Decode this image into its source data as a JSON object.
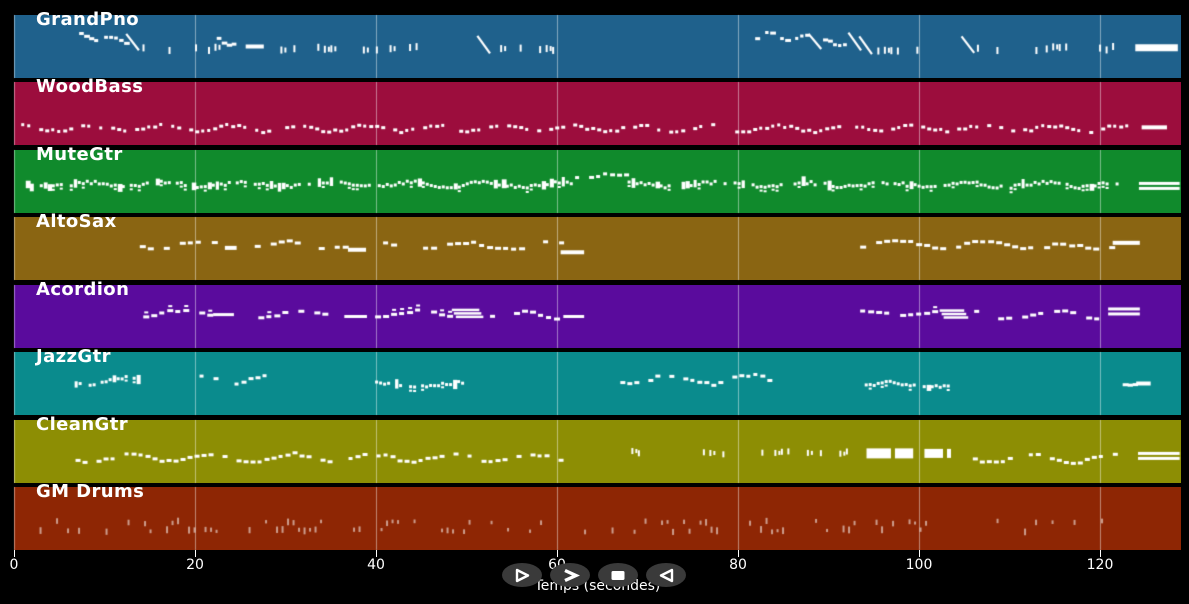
{
  "chart_data": {
    "type": "scatter",
    "subtype": "midi-piano-roll",
    "xlabel": "Temps (secondes)",
    "xlim": [
      0,
      129
    ],
    "xticks": [
      0,
      20,
      40,
      60,
      80,
      100,
      120
    ],
    "grid": true,
    "background": "#000000",
    "gridline_color": "rgba(255,255,255,0.45)",
    "tracks": [
      {
        "name": "GrandPno",
        "color": "#1f618c",
        "note_color": "#ffffff",
        "phrases": [
          {
            "kind": "run",
            "t0": 7.2,
            "t1": 12.4,
            "y": 0.33,
            "amp": 0.05,
            "slope": 0.1,
            "dens": 0.9
          },
          {
            "kind": "slash",
            "t0": 12.4,
            "t1": 13.8,
            "y": 0.3,
            "drop": 0.26
          },
          {
            "kind": "dash",
            "t0": 14.2,
            "t1": 18.3,
            "y": 0.55,
            "dens": 0.45
          },
          {
            "kind": "dash",
            "t0": 20.0,
            "t1": 22.2,
            "y": 0.54,
            "dens": 0.5
          },
          {
            "kind": "run",
            "t0": 22.4,
            "t1": 25.4,
            "y": 0.38,
            "amp": 0.06,
            "slope": 0.12,
            "dens": 0.85
          },
          {
            "kind": "bar",
            "t0": 25.6,
            "t1": 27.6,
            "y": 0.5,
            "h": 4
          },
          {
            "kind": "dash",
            "t0": 28.0,
            "t1": 31.5,
            "y": 0.55,
            "dens": 0.45
          },
          {
            "kind": "dash",
            "t0": 32.8,
            "t1": 40.0,
            "y": 0.53,
            "dens": 0.42
          },
          {
            "kind": "dash",
            "t0": 41.5,
            "t1": 47.8,
            "y": 0.53,
            "dens": 0.42
          },
          {
            "kind": "slash",
            "t0": 51.2,
            "t1": 52.6,
            "y": 0.33,
            "drop": 0.28
          },
          {
            "kind": "dash",
            "t0": 53.0,
            "t1": 60.0,
            "y": 0.55,
            "dens": 0.45
          },
          {
            "kind": "run",
            "t0": 81.9,
            "t1": 87.6,
            "y": 0.32,
            "amp": 0.06,
            "slope": 0.06,
            "dens": 0.85
          },
          {
            "kind": "slash",
            "t0": 87.8,
            "t1": 89.2,
            "y": 0.3,
            "drop": 0.24
          },
          {
            "kind": "run",
            "t0": 89.4,
            "t1": 92.0,
            "y": 0.42,
            "amp": 0.04,
            "slope": 0.04,
            "dens": 0.8
          },
          {
            "kind": "slash",
            "t0": 92.2,
            "t1": 93.6,
            "y": 0.28,
            "drop": 0.28
          },
          {
            "kind": "slash",
            "t0": 93.4,
            "t1": 94.8,
            "y": 0.34,
            "drop": 0.28
          },
          {
            "kind": "dash",
            "t0": 95.4,
            "t1": 101.8,
            "y": 0.55,
            "dens": 0.45
          },
          {
            "kind": "slash",
            "t0": 104.7,
            "t1": 106.1,
            "y": 0.34,
            "drop": 0.26
          },
          {
            "kind": "dash",
            "t0": 106.4,
            "t1": 113.4,
            "y": 0.54,
            "dens": 0.45
          },
          {
            "kind": "dash",
            "t0": 114.0,
            "t1": 117.3,
            "y": 0.53,
            "dens": 0.5
          },
          {
            "kind": "dash",
            "t0": 119.9,
            "t1": 121.8,
            "y": 0.53,
            "dens": 0.6
          },
          {
            "kind": "bar",
            "t0": 123.9,
            "t1": 128.6,
            "y": 0.52,
            "h": 7
          }
        ]
      },
      {
        "name": "WoodBass",
        "color": "#9c0d3d",
        "note_color": "#ffffff",
        "phrases": [
          {
            "kind": "wave",
            "t0": 0.8,
            "t1": 123.2,
            "y": 0.74,
            "amp": 0.045,
            "dens": 0.78,
            "w": 4,
            "h": 3
          },
          {
            "kind": "bar",
            "t0": 124.6,
            "t1": 127.4,
            "y": 0.72,
            "h": 4
          }
        ]
      },
      {
        "name": "MuteGtr",
        "color": "#108a2c",
        "note_color": "#ffffff",
        "phrases": [
          {
            "kind": "dense",
            "t0": 1.3,
            "t1": 61.5,
            "y": 0.55,
            "amp": 0.035,
            "dens": 0.95
          },
          {
            "kind": "wave",
            "t0": 62.0,
            "t1": 67.5,
            "y": 0.42,
            "amp": 0.04,
            "dens": 0.7,
            "w": 5,
            "h": 3
          },
          {
            "kind": "dense",
            "t0": 67.8,
            "t1": 122.3,
            "y": 0.55,
            "amp": 0.035,
            "dens": 0.95
          },
          {
            "kind": "dbar",
            "t0": 124.3,
            "t1": 128.8,
            "y": 0.57,
            "h": 3
          }
        ]
      },
      {
        "name": "AltoSax",
        "color": "#8a6512",
        "note_color": "#ffffff",
        "phrases": [
          {
            "kind": "wave",
            "t0": 13.9,
            "t1": 23.2,
            "y": 0.44,
            "amp": 0.05,
            "dens": 0.72,
            "w": 6,
            "h": 3
          },
          {
            "kind": "bar",
            "t0": 23.3,
            "t1": 24.6,
            "y": 0.49,
            "h": 4
          },
          {
            "kind": "wave",
            "t0": 26.6,
            "t1": 36.8,
            "y": 0.45,
            "amp": 0.05,
            "dens": 0.72,
            "w": 6,
            "h": 3
          },
          {
            "kind": "bar",
            "t0": 36.9,
            "t1": 38.9,
            "y": 0.52,
            "h": 4
          },
          {
            "kind": "wave",
            "t0": 39.9,
            "t1": 60.3,
            "y": 0.46,
            "amp": 0.06,
            "dens": 0.72,
            "w": 6,
            "h": 3
          },
          {
            "kind": "bar",
            "t0": 60.4,
            "t1": 63.0,
            "y": 0.56,
            "h": 4
          },
          {
            "kind": "wave",
            "t0": 93.5,
            "t1": 116.0,
            "y": 0.44,
            "amp": 0.06,
            "dens": 0.72,
            "w": 6,
            "h": 3
          },
          {
            "kind": "wave",
            "t0": 116.6,
            "t1": 121.2,
            "y": 0.47,
            "amp": 0.05,
            "dens": 0.75,
            "w": 6,
            "h": 3
          },
          {
            "kind": "bar",
            "t0": 121.4,
            "t1": 124.4,
            "y": 0.41,
            "h": 4
          }
        ]
      },
      {
        "name": "Acordion",
        "color": "#5a0b9d",
        "note_color": "#ffffff",
        "phrases": [
          {
            "kind": "wave",
            "t0": 13.4,
            "t1": 21.9,
            "y": 0.45,
            "amp": 0.05,
            "dens": 0.75,
            "w": 6,
            "h": 3,
            "dbl": 0.2
          },
          {
            "kind": "bar",
            "t0": 22.0,
            "t1": 24.3,
            "y": 0.47,
            "h": 3
          },
          {
            "kind": "wave",
            "t0": 27.0,
            "t1": 36.4,
            "y": 0.46,
            "amp": 0.05,
            "dens": 0.75,
            "w": 6,
            "h": 3,
            "dbl": 0.2
          },
          {
            "kind": "bar",
            "t0": 36.5,
            "t1": 39.0,
            "y": 0.5,
            "h": 3
          },
          {
            "kind": "wave",
            "t0": 39.9,
            "t1": 48.4,
            "y": 0.46,
            "amp": 0.05,
            "dens": 0.75,
            "w": 6,
            "h": 3,
            "dbl": 0.2
          },
          {
            "kind": "chord",
            "t0": 48.6,
            "t1": 52.4,
            "y": 0.45,
            "h": 3
          },
          {
            "kind": "wave",
            "t0": 52.6,
            "t1": 60.6,
            "y": 0.48,
            "amp": 0.05,
            "dens": 0.75,
            "w": 6,
            "h": 3
          },
          {
            "kind": "bar",
            "t0": 60.7,
            "t1": 63.0,
            "y": 0.5,
            "h": 3
          },
          {
            "kind": "wave",
            "t0": 93.5,
            "t1": 102.3,
            "y": 0.44,
            "amp": 0.05,
            "dens": 0.75,
            "w": 6,
            "h": 3,
            "dbl": 0.2
          },
          {
            "kind": "chord",
            "t0": 102.5,
            "t1": 105.9,
            "y": 0.46,
            "h": 3
          },
          {
            "kind": "wave",
            "t0": 106.1,
            "t1": 120.7,
            "y": 0.47,
            "amp": 0.06,
            "dens": 0.75,
            "w": 6,
            "h": 3
          },
          {
            "kind": "dbar",
            "t0": 120.9,
            "t1": 124.4,
            "y": 0.42,
            "h": 3
          }
        ]
      },
      {
        "name": "JazzGtr",
        "color": "#0a8b8d",
        "note_color": "#ffffff",
        "phrases": [
          {
            "kind": "dense",
            "t0": 6.7,
            "t1": 13.9,
            "y": 0.46,
            "amp": 0.05,
            "dens": 0.85
          },
          {
            "kind": "wave",
            "t0": 20.5,
            "t1": 27.9,
            "y": 0.42,
            "amp": 0.07,
            "dens": 0.7,
            "w": 5,
            "h": 3
          },
          {
            "kind": "dash",
            "t0": 28.2,
            "t1": 30.0,
            "y": 0.5,
            "dens": 0.4,
            "h": 5
          },
          {
            "kind": "dense",
            "t0": 39.9,
            "t1": 49.8,
            "y": 0.52,
            "amp": 0.03,
            "dens": 0.95
          },
          {
            "kind": "wave",
            "t0": 67.0,
            "t1": 84.0,
            "y": 0.44,
            "amp": 0.07,
            "dens": 0.7,
            "w": 5,
            "h": 3
          },
          {
            "kind": "dense",
            "t0": 94.0,
            "t1": 103.9,
            "y": 0.52,
            "amp": 0.03,
            "dens": 0.95
          },
          {
            "kind": "run",
            "t0": 121.4,
            "t1": 123.9,
            "y": 0.42,
            "amp": 0.04,
            "slope": 0.12,
            "dens": 0.85
          },
          {
            "kind": "bar",
            "t0": 124.0,
            "t1": 125.6,
            "y": 0.5,
            "h": 4
          }
        ]
      },
      {
        "name": "CleanGtr",
        "color": "#8d8e04",
        "note_color": "#ffffff",
        "phrases": [
          {
            "kind": "wave",
            "t0": 6.8,
            "t1": 61.4,
            "y": 0.6,
            "amp": 0.06,
            "dens": 0.72,
            "w": 5,
            "h": 3
          },
          {
            "kind": "dash",
            "t0": 67.5,
            "t1": 93.4,
            "y": 0.52,
            "dens": 0.42,
            "h": 6
          },
          {
            "kind": "block",
            "t0": 94.2,
            "t1": 99.8,
            "y": 0.53,
            "h": 10
          },
          {
            "kind": "block",
            "t0": 100.6,
            "t1": 103.3,
            "y": 0.53,
            "h": 9
          },
          {
            "kind": "wave",
            "t0": 104.4,
            "t1": 121.8,
            "y": 0.62,
            "amp": 0.06,
            "dens": 0.72,
            "w": 5,
            "h": 3
          },
          {
            "kind": "dbar",
            "t0": 124.2,
            "t1": 128.8,
            "y": 0.57,
            "h": 3
          }
        ]
      },
      {
        "name": "GM Drums",
        "color": "#8e2604",
        "note_color": "rgba(255,255,255,0.55)",
        "phrases": [
          {
            "kind": "tick",
            "t0": 1.0,
            "t1": 121.3,
            "y": 0.66,
            "dens": 0.42
          }
        ]
      }
    ]
  },
  "axis": {
    "label": "Temps (secondes)",
    "tick_labels": [
      "0",
      "20",
      "40",
      "60",
      "80",
      "100",
      "120"
    ]
  },
  "controls": {
    "background": "#3a3a3a",
    "icon_color": "#ffffff",
    "buttons": [
      {
        "id": "play",
        "icon": "play-icon"
      },
      {
        "id": "fast-forward",
        "icon": "fast-forward-icon"
      },
      {
        "id": "stop",
        "icon": "stop-icon"
      },
      {
        "id": "rewind",
        "icon": "rewind-icon"
      }
    ]
  }
}
